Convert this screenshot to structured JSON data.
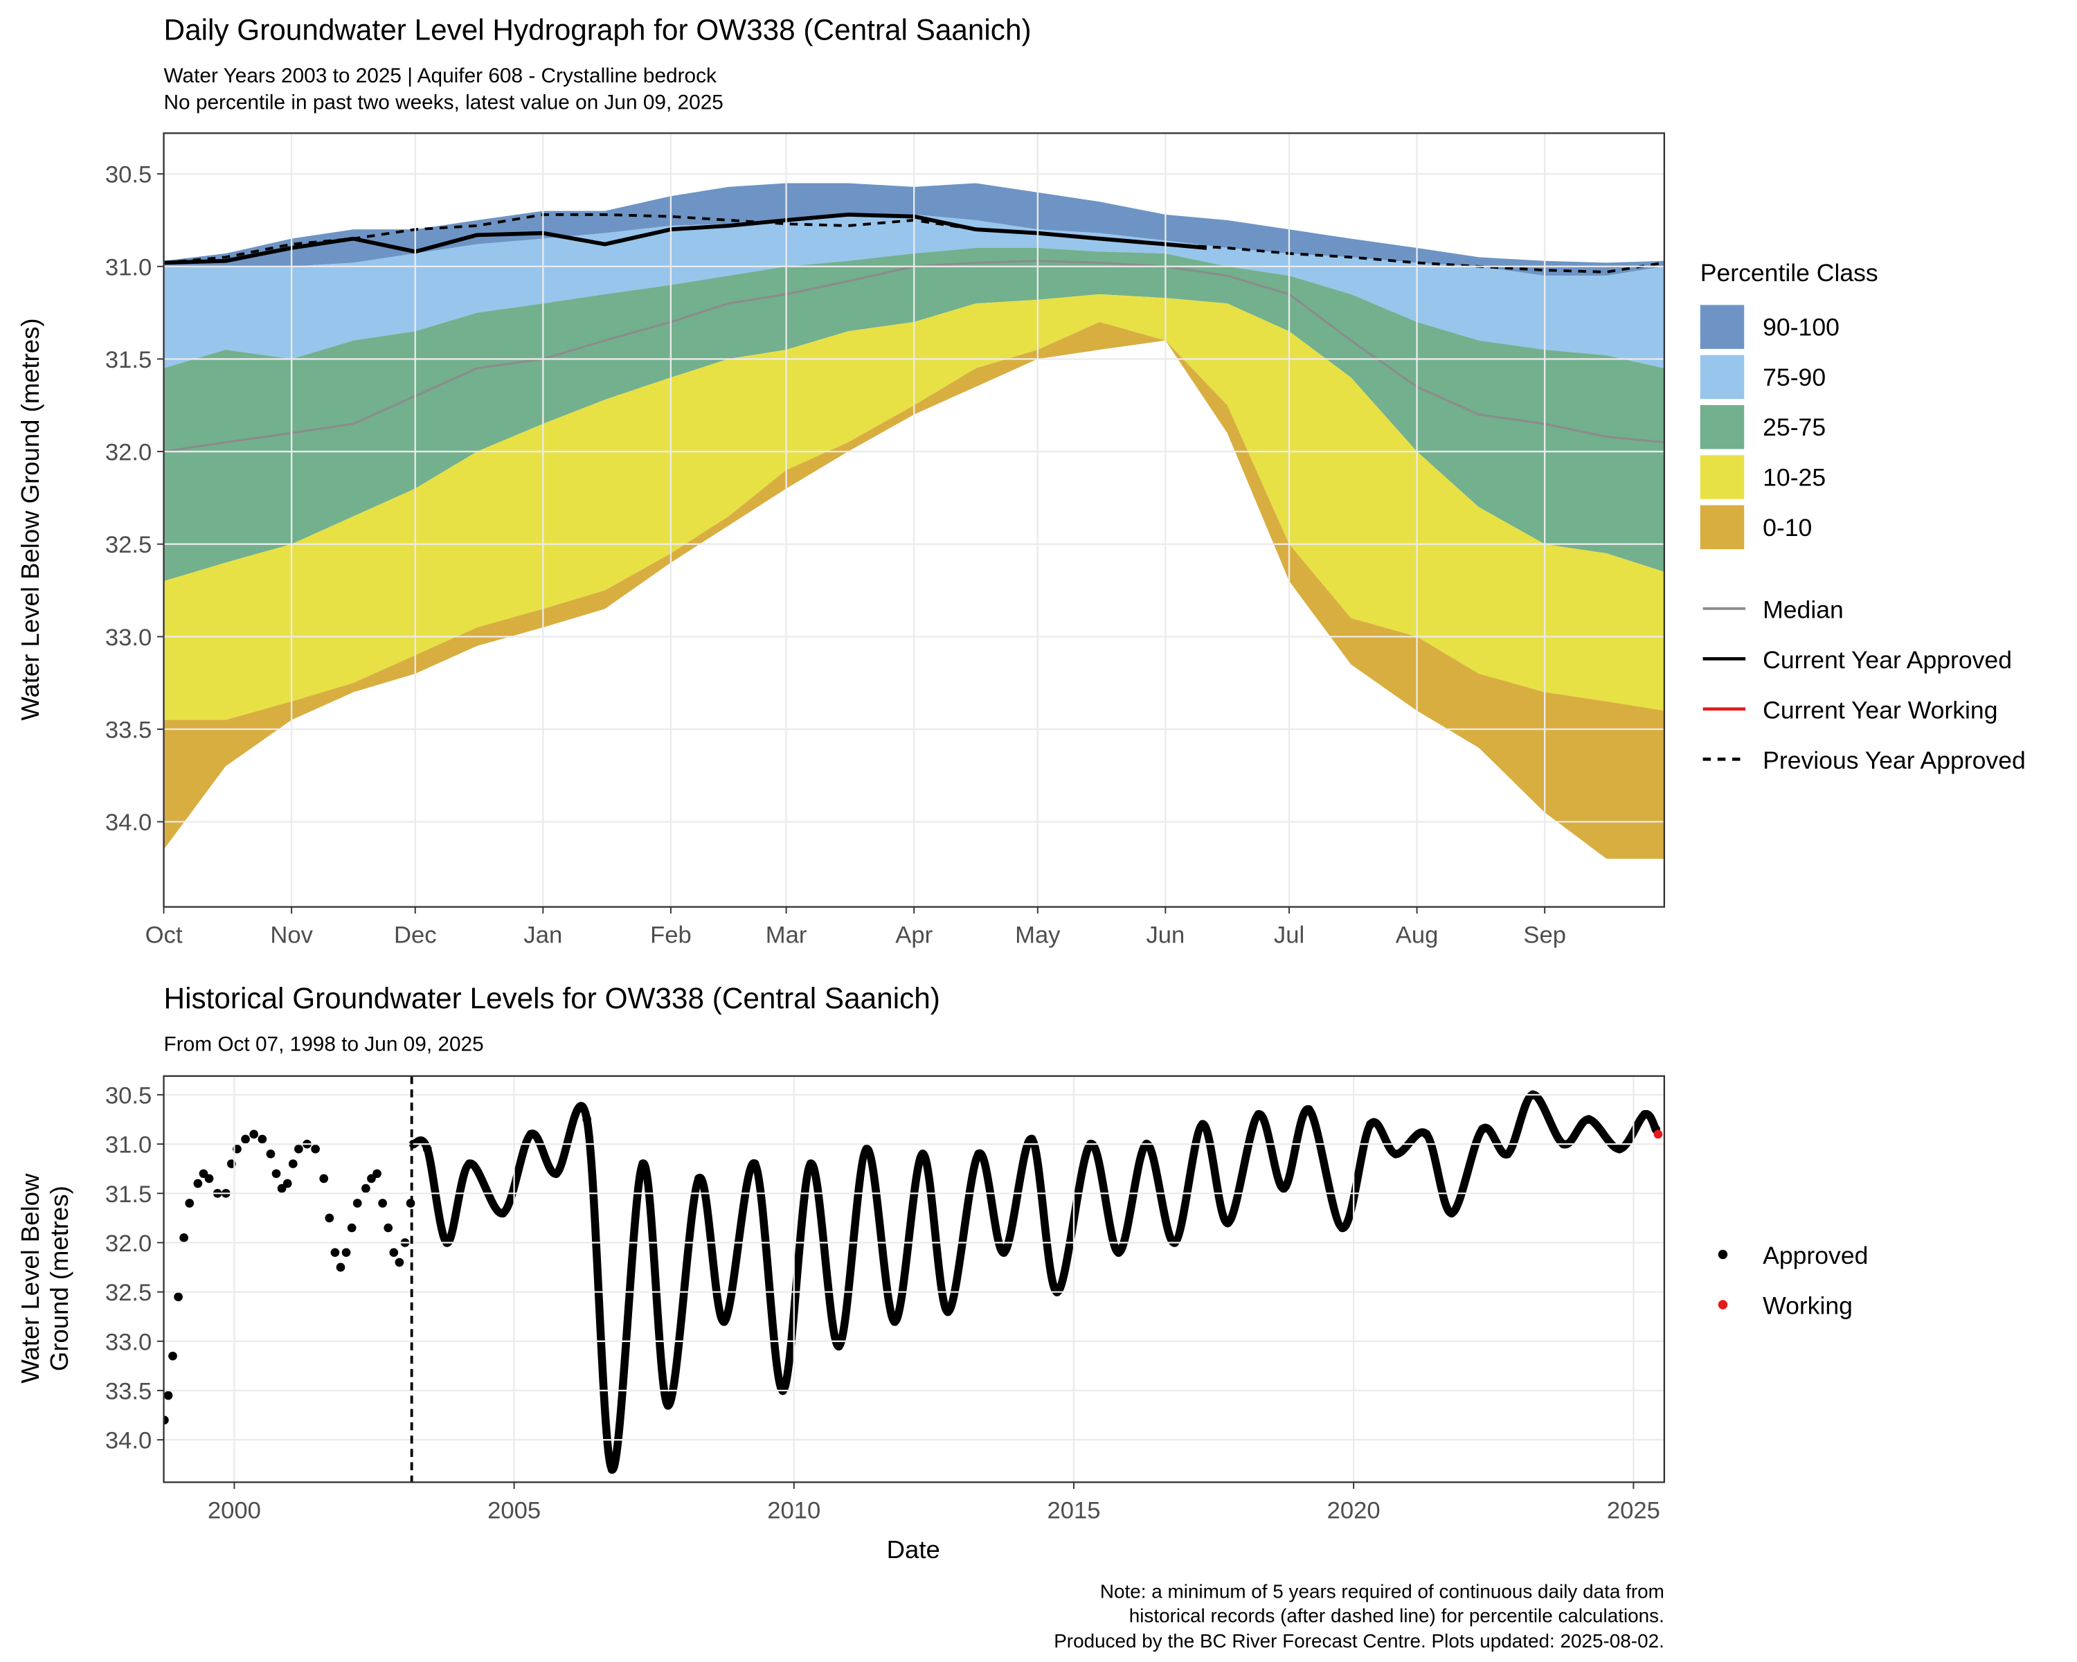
{
  "chart_data": [
    {
      "type": "area",
      "title": "Daily Groundwater Level Hydrograph for OW338 (Central Saanich)",
      "subtitle": [
        "Water Years 2003 to 2025 | Aquifer 608 - Crystalline bedrock",
        "No percentile in past two weeks, latest value on Jun 09, 2025"
      ],
      "y_label": "Water Level Below Ground (metres)",
      "x": [
        0,
        15,
        31,
        46,
        61,
        76,
        92,
        107,
        123,
        137,
        151,
        166,
        182,
        197,
        212,
        227,
        243,
        258,
        273,
        288,
        304,
        319,
        335,
        350,
        364
      ],
      "xlim": [
        0,
        364
      ],
      "xticks": [
        {
          "value": 0,
          "label": "Oct"
        },
        {
          "value": 31,
          "label": "Nov"
        },
        {
          "value": 61,
          "label": "Dec"
        },
        {
          "value": 92,
          "label": "Jan"
        },
        {
          "value": 123,
          "label": "Feb"
        },
        {
          "value": 151,
          "label": "Mar"
        },
        {
          "value": 182,
          "label": "Apr"
        },
        {
          "value": 212,
          "label": "May"
        },
        {
          "value": 243,
          "label": "Jun"
        },
        {
          "value": 273,
          "label": "Jul"
        },
        {
          "value": 304,
          "label": "Aug"
        },
        {
          "value": 335,
          "label": "Sep"
        }
      ],
      "ylim": [
        30.28,
        34.46
      ],
      "y_reversed": true,
      "yticks": [
        30.5,
        {
          "value": 31,
          "label": "31.0"
        },
        31.5,
        {
          "value": 32,
          "label": "32.0"
        },
        32.5,
        {
          "value": 33,
          "label": "33.0"
        },
        33.5,
        {
          "value": 34,
          "label": "34.0"
        }
      ],
      "grid": true,
      "legend_title": "Percentile Class",
      "bands": [
        {
          "name": "90-100",
          "color": "#6d94c4",
          "top": [
            30.97,
            30.93,
            30.85,
            30.8,
            30.8,
            30.75,
            30.7,
            30.7,
            30.62,
            30.57,
            30.55,
            30.55,
            30.57,
            30.55,
            30.6,
            30.65,
            30.72,
            30.75,
            30.8,
            30.85,
            30.9,
            30.95,
            30.97,
            30.98,
            30.97
          ],
          "bottom": [
            31.0,
            31.0,
            31.0,
            30.98,
            30.93,
            30.88,
            30.85,
            30.82,
            30.78,
            30.77,
            30.75,
            30.73,
            30.72,
            30.75,
            30.8,
            30.82,
            30.86,
            30.9,
            30.93,
            30.95,
            30.98,
            31.0,
            31.05,
            31.05,
            31.0
          ]
        },
        {
          "name": "75-90",
          "color": "#98c5ec",
          "top": [
            31.0,
            31.0,
            31.0,
            30.98,
            30.93,
            30.88,
            30.85,
            30.82,
            30.78,
            30.77,
            30.75,
            30.73,
            30.72,
            30.75,
            30.8,
            30.82,
            30.86,
            30.9,
            30.93,
            30.95,
            30.98,
            31.0,
            31.05,
            31.05,
            31.0
          ],
          "bottom": [
            31.55,
            31.45,
            31.5,
            31.4,
            31.35,
            31.25,
            31.2,
            31.15,
            31.1,
            31.05,
            31.0,
            30.97,
            30.93,
            30.9,
            30.9,
            30.92,
            30.93,
            31.0,
            31.05,
            31.15,
            31.3,
            31.4,
            31.45,
            31.48,
            31.55
          ]
        },
        {
          "name": "25-75",
          "color": "#73b08e",
          "top": [
            31.55,
            31.45,
            31.5,
            31.4,
            31.35,
            31.25,
            31.2,
            31.15,
            31.1,
            31.05,
            31.0,
            30.97,
            30.93,
            30.9,
            30.9,
            30.92,
            30.93,
            31.0,
            31.05,
            31.15,
            31.3,
            31.4,
            31.45,
            31.48,
            31.55
          ],
          "bottom": [
            32.7,
            32.6,
            32.5,
            32.35,
            32.2,
            32.0,
            31.85,
            31.72,
            31.6,
            31.5,
            31.45,
            31.35,
            31.3,
            31.2,
            31.18,
            31.15,
            31.17,
            31.2,
            31.35,
            31.6,
            32.0,
            32.3,
            32.5,
            32.55,
            32.65
          ]
        },
        {
          "name": "10-25",
          "color": "#e7e146",
          "top": [
            32.7,
            32.6,
            32.5,
            32.35,
            32.2,
            32.0,
            31.85,
            31.72,
            31.6,
            31.5,
            31.45,
            31.35,
            31.3,
            31.2,
            31.18,
            31.15,
            31.17,
            31.2,
            31.35,
            31.6,
            32.0,
            32.3,
            32.5,
            32.55,
            32.65
          ],
          "bottom": [
            33.45,
            33.45,
            33.35,
            33.25,
            33.1,
            32.95,
            32.85,
            32.75,
            32.55,
            32.35,
            32.1,
            31.95,
            31.75,
            31.55,
            31.45,
            31.3,
            31.4,
            31.75,
            32.5,
            32.9,
            33.0,
            33.2,
            33.3,
            33.35,
            33.4
          ]
        },
        {
          "name": "0-10",
          "color": "#d9ae40",
          "top": [
            33.45,
            33.45,
            33.35,
            33.25,
            33.1,
            32.95,
            32.85,
            32.75,
            32.55,
            32.35,
            32.1,
            31.95,
            31.75,
            31.55,
            31.45,
            31.3,
            31.4,
            31.75,
            32.5,
            32.9,
            33.0,
            33.2,
            33.3,
            33.35,
            33.4
          ],
          "bottom": [
            34.15,
            33.7,
            33.45,
            33.3,
            33.2,
            33.05,
            32.95,
            32.85,
            32.6,
            32.4,
            32.2,
            32.0,
            31.8,
            31.65,
            31.5,
            31.45,
            31.4,
            31.9,
            32.7,
            33.15,
            33.4,
            33.6,
            33.95,
            34.2,
            34.2
          ]
        }
      ],
      "series": [
        {
          "name": "Median",
          "color": "#8c8c8c",
          "values": [
            32.0,
            31.95,
            31.9,
            31.85,
            31.7,
            31.55,
            31.5,
            31.4,
            31.3,
            31.2,
            31.15,
            31.08,
            31.0,
            30.98,
            30.97,
            30.98,
            31.0,
            31.05,
            31.15,
            31.4,
            31.65,
            31.8,
            31.85,
            31.92,
            31.95
          ]
        },
        {
          "name": "Current Year Approved",
          "color": "#000000",
          "x": [
            0,
            15,
            31,
            46,
            61,
            76,
            92,
            107,
            123,
            137,
            151,
            166,
            182,
            197,
            212,
            227,
            243,
            253
          ],
          "values": [
            30.98,
            30.97,
            30.9,
            30.85,
            30.92,
            30.83,
            30.82,
            30.88,
            30.8,
            30.78,
            30.75,
            30.72,
            30.73,
            30.8,
            30.82,
            30.85,
            30.88,
            30.9
          ]
        },
        {
          "name": "Current Year Working",
          "color": "#e41a1c",
          "x": [],
          "values": []
        },
        {
          "name": "Previous Year Approved",
          "color": "#000000",
          "dash": true,
          "values": [
            30.98,
            30.95,
            30.88,
            30.85,
            30.8,
            30.78,
            30.72,
            30.72,
            30.73,
            30.75,
            30.77,
            30.78,
            30.75,
            30.8,
            30.82,
            30.85,
            30.88,
            30.9,
            30.93,
            30.95,
            30.98,
            31.0,
            31.02,
            31.03,
            30.98
          ]
        }
      ]
    },
    {
      "type": "scatter",
      "title": "Historical Groundwater Levels for OW338 (Central Saanich)",
      "subtitle": [
        "From Oct 07, 1998 to Jun 09, 2025"
      ],
      "x_label": "Date",
      "y_label_lines": [
        "Water Level Below",
        "Ground (metres)"
      ],
      "xlim": [
        1998.74,
        2025.55
      ],
      "xticks": [
        2000,
        2005,
        2010,
        2015,
        2020,
        2025
      ],
      "ylim": [
        30.31,
        34.43
      ],
      "y_reversed": true,
      "yticks": [
        30.5,
        {
          "value": 31,
          "label": "31.0"
        },
        31.5,
        {
          "value": 32,
          "label": "32.0"
        },
        32.5,
        {
          "value": 33,
          "label": "33.0"
        },
        33.5,
        {
          "value": 34,
          "label": "34.0"
        }
      ],
      "grid": true,
      "cutoff_x": 2003.17,
      "series": [
        {
          "name": "Approved",
          "color": "#000000",
          "x": [
            1998.75,
            1998.82,
            1998.9,
            1999.0,
            1999.1,
            1999.2,
            1999.35,
            1999.45,
            1999.55,
            1999.7,
            1999.85,
            1999.95,
            2000.05,
            2000.2,
            2000.35,
            2000.5,
            2000.65,
            2000.75,
            2000.85,
            2000.95,
            2001.05,
            2001.15,
            2001.3,
            2001.45,
            2001.6,
            2001.7,
            2001.8,
            2001.9,
            2002.0,
            2002.1,
            2002.2,
            2002.35,
            2002.45,
            2002.55,
            2002.65,
            2002.75,
            2002.85,
            2002.95,
            2003.05,
            2003.15,
            2003.2,
            2003.45,
            2003.8,
            2004.2,
            2004.8,
            2005.3,
            2005.75,
            2006.3,
            2006.75,
            2007.3,
            2007.75,
            2008.3,
            2008.75,
            2009.3,
            2009.8,
            2010.3,
            2010.8,
            2011.3,
            2011.8,
            2012.3,
            2012.75,
            2013.3,
            2013.75,
            2014.25,
            2014.7,
            2015.3,
            2015.8,
            2016.3,
            2016.8,
            2017.3,
            2017.75,
            2018.3,
            2018.75,
            2019.2,
            2019.8,
            2020.3,
            2020.75,
            2021.3,
            2021.75,
            2022.3,
            2022.75,
            2023.2,
            2023.75,
            2024.2,
            2024.75,
            2025.2,
            2025.4
          ],
          "values": [
            33.8,
            33.55,
            33.15,
            32.55,
            31.95,
            31.6,
            31.4,
            31.3,
            31.35,
            31.5,
            31.5,
            31.2,
            31.05,
            30.95,
            30.9,
            30.95,
            31.1,
            31.3,
            31.45,
            31.4,
            31.2,
            31.05,
            31.0,
            31.05,
            31.35,
            31.75,
            32.1,
            32.25,
            32.1,
            31.85,
            31.6,
            31.45,
            31.35,
            31.3,
            31.6,
            31.85,
            32.1,
            32.2,
            32.0,
            31.6,
            31.0,
            31.05,
            32.0,
            31.2,
            31.7,
            30.9,
            31.3,
            30.75,
            34.3,
            31.2,
            33.65,
            31.35,
            32.8,
            31.2,
            33.5,
            31.2,
            33.05,
            31.05,
            32.8,
            31.1,
            32.7,
            31.1,
            32.1,
            30.95,
            32.5,
            31.0,
            32.1,
            31.0,
            32.0,
            30.8,
            31.8,
            30.7,
            31.45,
            30.65,
            31.85,
            30.8,
            31.1,
            30.9,
            31.7,
            30.85,
            31.1,
            30.5,
            31.0,
            30.75,
            31.05,
            30.7,
            30.85
          ]
        },
        {
          "name": "Working",
          "color": "#e41a1c",
          "x": [
            2025.44
          ],
          "values": [
            30.9
          ]
        }
      ]
    }
  ],
  "note": [
    "Note: a minimum of 5 years required of continuous daily data from",
    "historical records (after dashed line) for percentile calculations.",
    "Produced by the BC River Forecast Centre. Plots updated: 2025-08-02."
  ]
}
